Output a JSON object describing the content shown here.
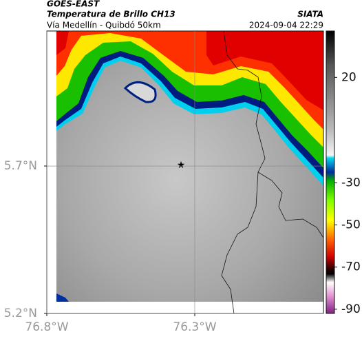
{
  "header": {
    "title": "GOES-EAST",
    "subtitle": "Temperatura de Brillo CH13",
    "route": "Vía Medellín - Quibdó 50km",
    "source": "SIATA",
    "datetime": "2024-09-04 22:29"
  },
  "map": {
    "xlim": [
      -76.8,
      -75.865
    ],
    "ylim": [
      5.2,
      6.158
    ],
    "xticks": [
      {
        "value": -76.8,
        "label": "76.8°W"
      },
      {
        "value": -76.3,
        "label": "76.3°W"
      }
    ],
    "yticks": [
      {
        "value": 5.2,
        "label": "5.2°N"
      },
      {
        "value": 5.7,
        "label": "5.7°N"
      }
    ],
    "grid": true
  },
  "colorbar": {
    "lim": [
      -92,
      42
    ],
    "ticks": [
      20,
      -30,
      -50,
      -70,
      -90
    ]
  }
}
